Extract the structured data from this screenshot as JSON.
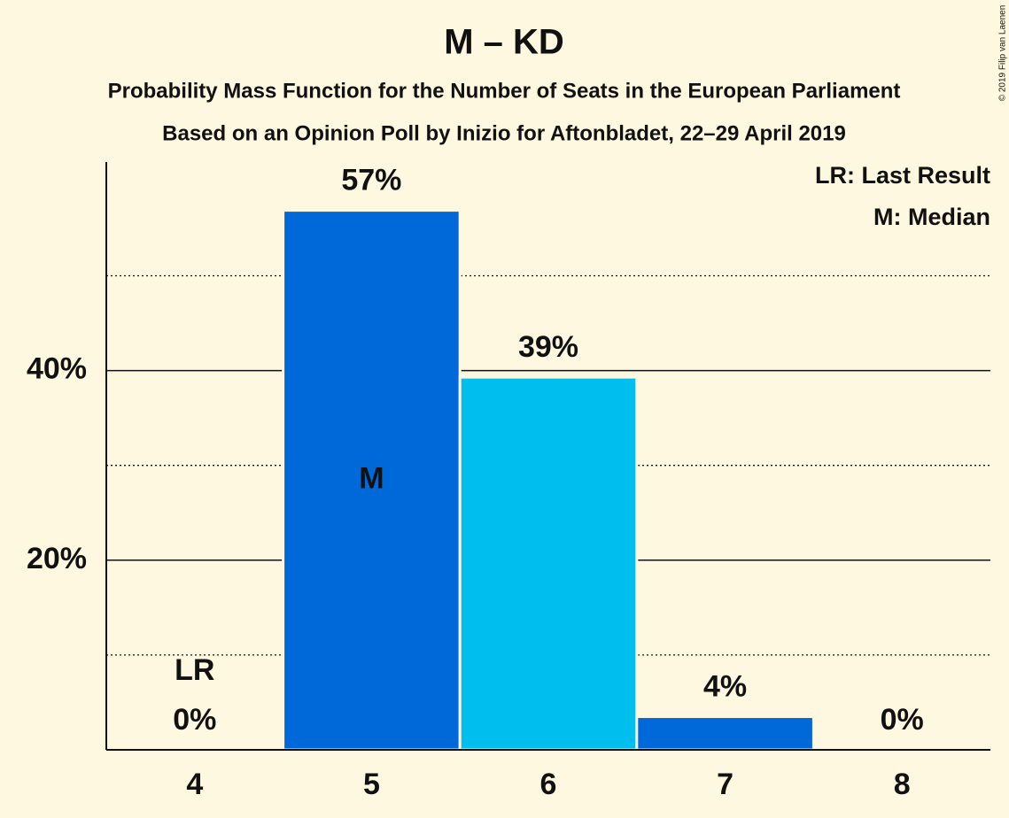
{
  "chart_data": {
    "type": "bar",
    "title": "M – KD",
    "subtitle": [
      "Probability Mass Function for the Number of Seats in the European Parliament",
      "Based on an Opinion Poll by Inizio for Aftonbladet, 22–29 April 2019"
    ],
    "copyright": "© 2019 Filip van Laenen",
    "categories": [
      "4",
      "5",
      "6",
      "7",
      "8"
    ],
    "values": [
      0,
      56.9,
      39.3,
      3.5,
      0
    ],
    "value_labels": [
      "0%",
      "57%",
      "39%",
      "4%",
      "0%"
    ],
    "colors": [
      "#0069d9",
      "#0069d9",
      "#00bfef",
      "#0069d9",
      "#0069d9"
    ],
    "ylim": [
      0,
      62
    ],
    "yticks": [
      {
        "value": 20,
        "label": "20%"
      },
      {
        "value": 40,
        "label": "40%"
      }
    ],
    "minor_yticks": [
      10,
      30,
      50
    ],
    "grid": true,
    "annotations": [
      {
        "text": "LR",
        "category": "4"
      },
      {
        "text": "M",
        "category": "5"
      }
    ],
    "legend": [
      "LR: Last Result",
      "M: Median"
    ],
    "legend_position": "top-right"
  }
}
